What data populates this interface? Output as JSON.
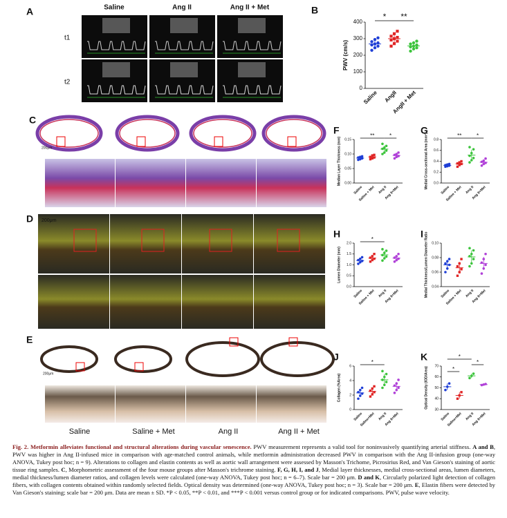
{
  "panel_labels": [
    "A",
    "C",
    "D",
    "E"
  ],
  "a_columns": [
    "Saline",
    "Ang II",
    "Ang II + Met"
  ],
  "a_rows": [
    "t1",
    "t2"
  ],
  "scale_bars": [
    "200μm",
    "200μm",
    "200μm"
  ],
  "e_columns": [
    "Saline",
    "Saline + Met",
    "Ang II",
    "Ang II + Met"
  ],
  "chart_data": [
    {
      "type": "dot",
      "label": "B",
      "ylabel": "PWV (cm/s)",
      "categories": [
        "Saline",
        "AngII",
        "AngII + Met"
      ],
      "colors": [
        "#1f3fd6",
        "#e02424",
        "#3cc43c"
      ],
      "points": [
        [
          230,
          245,
          255,
          262,
          268,
          275,
          282,
          295,
          305
        ],
        [
          255,
          270,
          285,
          292,
          300,
          308,
          315,
          330,
          345
        ],
        [
          225,
          238,
          245,
          250,
          255,
          262,
          268,
          275,
          285
        ]
      ],
      "means": [
        268,
        300,
        256
      ],
      "sd": [
        22,
        28,
        19
      ],
      "ylim": [
        0,
        400
      ],
      "yticks": [
        0,
        100,
        200,
        300,
        400
      ],
      "annotations": [
        {
          "text": "*",
          "pair": [
            0,
            1
          ]
        },
        {
          "text": "**",
          "pair": [
            1,
            2
          ]
        }
      ]
    },
    {
      "type": "dot",
      "label": "F",
      "ylabel": "Median Layer Thickness (mm)",
      "categories": [
        "Saline",
        "Saline + Met",
        "Ang II",
        "Ang II+Met"
      ],
      "colors": [
        "#1f3fd6",
        "#e02424",
        "#3cc43c",
        "#b040d8"
      ],
      "points": [
        [
          0.08,
          0.082,
          0.085,
          0.088,
          0.09,
          0.092
        ],
        [
          0.082,
          0.085,
          0.088,
          0.09,
          0.095,
          0.097
        ],
        [
          0.1,
          0.105,
          0.112,
          0.118,
          0.122,
          0.128,
          0.135
        ],
        [
          0.085,
          0.09,
          0.093,
          0.097,
          0.1,
          0.105
        ]
      ],
      "means": [
        0.086,
        0.09,
        0.117,
        0.095
      ],
      "sd": [
        0.005,
        0.006,
        0.012,
        0.007
      ],
      "ylim": [
        0,
        0.15
      ],
      "yticks": [
        {
          "value": 0,
          "label": "0.00"
        },
        0.05,
        {
          "value": 0.1,
          "label": "0.10"
        },
        0.15
      ],
      "annotations": [
        {
          "text": "**",
          "pair": [
            0,
            2
          ]
        },
        {
          "text": "*",
          "pair": [
            2,
            3
          ]
        }
      ]
    },
    {
      "type": "dot",
      "label": "G",
      "ylabel": "Medial Cross-sectional Area (mm²)",
      "categories": [
        "Saline",
        "Saline + Met",
        "Ang II",
        "Ang II+Met"
      ],
      "colors": [
        "#1f3fd6",
        "#e02424",
        "#3cc43c",
        "#b040d8"
      ],
      "points": [
        [
          0.3,
          0.31,
          0.32,
          0.33,
          0.34,
          0.35
        ],
        [
          0.3,
          0.33,
          0.35,
          0.36,
          0.38,
          0.4
        ],
        [
          0.38,
          0.42,
          0.46,
          0.5,
          0.55,
          0.62,
          0.66
        ],
        [
          0.32,
          0.35,
          0.37,
          0.39,
          0.41,
          0.45
        ]
      ],
      "means": [
        0.325,
        0.353,
        0.513,
        0.382
      ],
      "sd": [
        0.018,
        0.035,
        0.1,
        0.045
      ],
      "ylim": [
        0,
        0.8
      ],
      "yticks": [
        {
          "value": 0,
          "label": "0.0"
        },
        0.2,
        0.4,
        0.6,
        0.8
      ],
      "annotations": [
        {
          "text": "**",
          "pair": [
            0,
            2
          ]
        },
        {
          "text": "*",
          "pair": [
            2,
            3
          ]
        }
      ]
    },
    {
      "type": "dot",
      "label": "H",
      "ylabel": "Lumen Diameter (mm)",
      "categories": [
        "Saline",
        "Saline + Met",
        "Ang II",
        "Ang II+Met"
      ],
      "colors": [
        "#1f3fd6",
        "#e02424",
        "#3cc43c",
        "#b040d8"
      ],
      "points": [
        [
          1.05,
          1.12,
          1.18,
          1.22,
          1.28,
          1.35
        ],
        [
          1.15,
          1.22,
          1.28,
          1.33,
          1.4,
          1.5
        ],
        [
          1.2,
          1.3,
          1.38,
          1.45,
          1.55,
          1.65,
          1.72
        ],
        [
          1.15,
          1.22,
          1.28,
          1.33,
          1.4,
          1.5
        ]
      ],
      "means": [
        1.2,
        1.31,
        1.46,
        1.31
      ],
      "sd": [
        0.1,
        0.12,
        0.18,
        0.12
      ],
      "ylim": [
        0,
        2
      ],
      "yticks": [
        {
          "value": 0,
          "label": "0.0"
        },
        0.5,
        {
          "value": 1,
          "label": "1.0"
        },
        1.5,
        {
          "value": 2,
          "label": "2.0"
        }
      ],
      "annotations": [
        {
          "text": "*",
          "pair": [
            0,
            2
          ]
        }
      ]
    },
    {
      "type": "dot",
      "label": "I",
      "ylabel": "Medial Thickness/Lumen Diameter Ratio",
      "categories": [
        "Saline",
        "Saline + Met",
        "Ang II",
        "Ang II+Met"
      ],
      "colors": [
        "#1f3fd6",
        "#e02424",
        "#3cc43c",
        "#b040d8"
      ],
      "points": [
        [
          0.06,
          0.065,
          0.07,
          0.072,
          0.075,
          0.078
        ],
        [
          0.055,
          0.06,
          0.064,
          0.068,
          0.072,
          0.078
        ],
        [
          0.068,
          0.072,
          0.078,
          0.082,
          0.085,
          0.09,
          0.093
        ],
        [
          0.058,
          0.065,
          0.07,
          0.073,
          0.078,
          0.085
        ]
      ],
      "means": [
        0.07,
        0.066,
        0.081,
        0.072
      ],
      "sd": [
        0.007,
        0.008,
        0.009,
        0.009
      ],
      "ylim": [
        0.04,
        0.1
      ],
      "yticks": [
        0.04,
        0.06,
        0.08,
        {
          "value": 0.1,
          "label": "0.10"
        }
      ],
      "annotations": []
    },
    {
      "type": "dot",
      "label": "J",
      "ylabel": "Collagen (%Area)",
      "categories": [
        "Saline",
        "Saline+Met",
        "Ang II",
        "Ang II+Met"
      ],
      "colors": [
        "#1f3fd6",
        "#e02424",
        "#3cc43c",
        "#b040d8"
      ],
      "points": [
        [
          1.5,
          1.9,
          2.2,
          2.4,
          2.7,
          3.0
        ],
        [
          1.8,
          2.1,
          2.4,
          2.6,
          2.9,
          3.2
        ],
        [
          3.0,
          3.4,
          3.8,
          4.1,
          4.5,
          4.9,
          5.3
        ],
        [
          2.3,
          2.7,
          3.0,
          3.3,
          3.6,
          4.1
        ]
      ],
      "means": [
        2.3,
        2.5,
        4.1,
        3.2
      ],
      "sd": [
        0.5,
        0.5,
        0.8,
        0.6
      ],
      "ylim": [
        0,
        6
      ],
      "yticks": [
        0,
        2,
        4,
        6
      ],
      "annotations": [
        {
          "text": "*",
          "pair": [
            0,
            2
          ]
        }
      ]
    },
    {
      "type": "dot",
      "label": "K",
      "ylabel": "Optical Density (IOD/Area)",
      "categories": [
        "Saline",
        "Saline+Met",
        "Ang II",
        "Ang II+Met"
      ],
      "colors": [
        "#1f3fd6",
        "#e02424",
        "#3cc43c",
        "#b040d8"
      ],
      "points": [
        [
          48,
          51,
          54
        ],
        [
          40,
          43,
          46
        ],
        [
          59,
          61,
          63
        ],
        [
          52.5,
          53,
          53.5
        ]
      ],
      "means": [
        51,
        43,
        61,
        53
      ],
      "sd": [
        3,
        3,
        2,
        0.5
      ],
      "ylim": [
        30,
        70
      ],
      "yticks": [
        30,
        40,
        50,
        60,
        70
      ],
      "annotations": [
        {
          "text": "*",
          "pair": [
            0,
            1
          ]
        },
        {
          "text": "*",
          "pair": [
            0,
            2
          ]
        },
        {
          "text": "*",
          "pair": [
            2,
            3
          ]
        }
      ]
    }
  ],
  "caption": [
    {
      "text": "Fig. 2. Metformin alleviates functional and structural alterations during vascular senescence.",
      "bold": true
    },
    {
      "text": " PWV measurement represents a valid tool for noninvasively quantifying arterial stiffness. ",
      "bold": false
    },
    {
      "text": "A and B",
      "bold": true
    },
    {
      "text": ", PWV was higher in Ang II-infused mice in comparison with age-matched control animals, while metformin administration decreased PWV in comparison with the Ang II-infusion group (one-way ANOVA, Tukey post hoc; n = 9). Alterations to collagen and elastin contents as well as aortic wall arrangement were assessed by Masson's Trichome, Picrosirius Red, and Van Gieson's staining of aortic tissue ring samples. ",
      "bold": false
    },
    {
      "text": "C",
      "bold": true
    },
    {
      "text": ", Morphometric assessment of the four mouse groups after Masson's trichrome staining. ",
      "bold": false
    },
    {
      "text": "F, G, H, I, and J",
      "bold": true
    },
    {
      "text": ", Medial layer thicknesses, medial cross-sectional areas, lumen diameters, medial thickness/lumen diameter ratios, and collagen levels were calculated (one-way ANOVA, Tukey post hoc; n = 6–7). Scale bar = 200 μm. ",
      "bold": false
    },
    {
      "text": "D and K",
      "bold": true
    },
    {
      "text": ", Circularly polarized light detection of collagen fibers, with collagen contents obtained within randomly selected fields. Optical density was determined (one-way ANOVA, Tukey post hoc; n = 3). Scale bar = 200 μm. ",
      "bold": false
    },
    {
      "text": "E",
      "bold": true
    },
    {
      "text": ", Elastin fibers were detected by Van Gieson's staining; scale bar = 200 μm. Data are mean ± SD. *P < 0.05, **P < 0.01, and ***P < 0.001 versus control group or for indicated comparisons. PWV, pulse wave velocity.",
      "bold": false
    }
  ]
}
